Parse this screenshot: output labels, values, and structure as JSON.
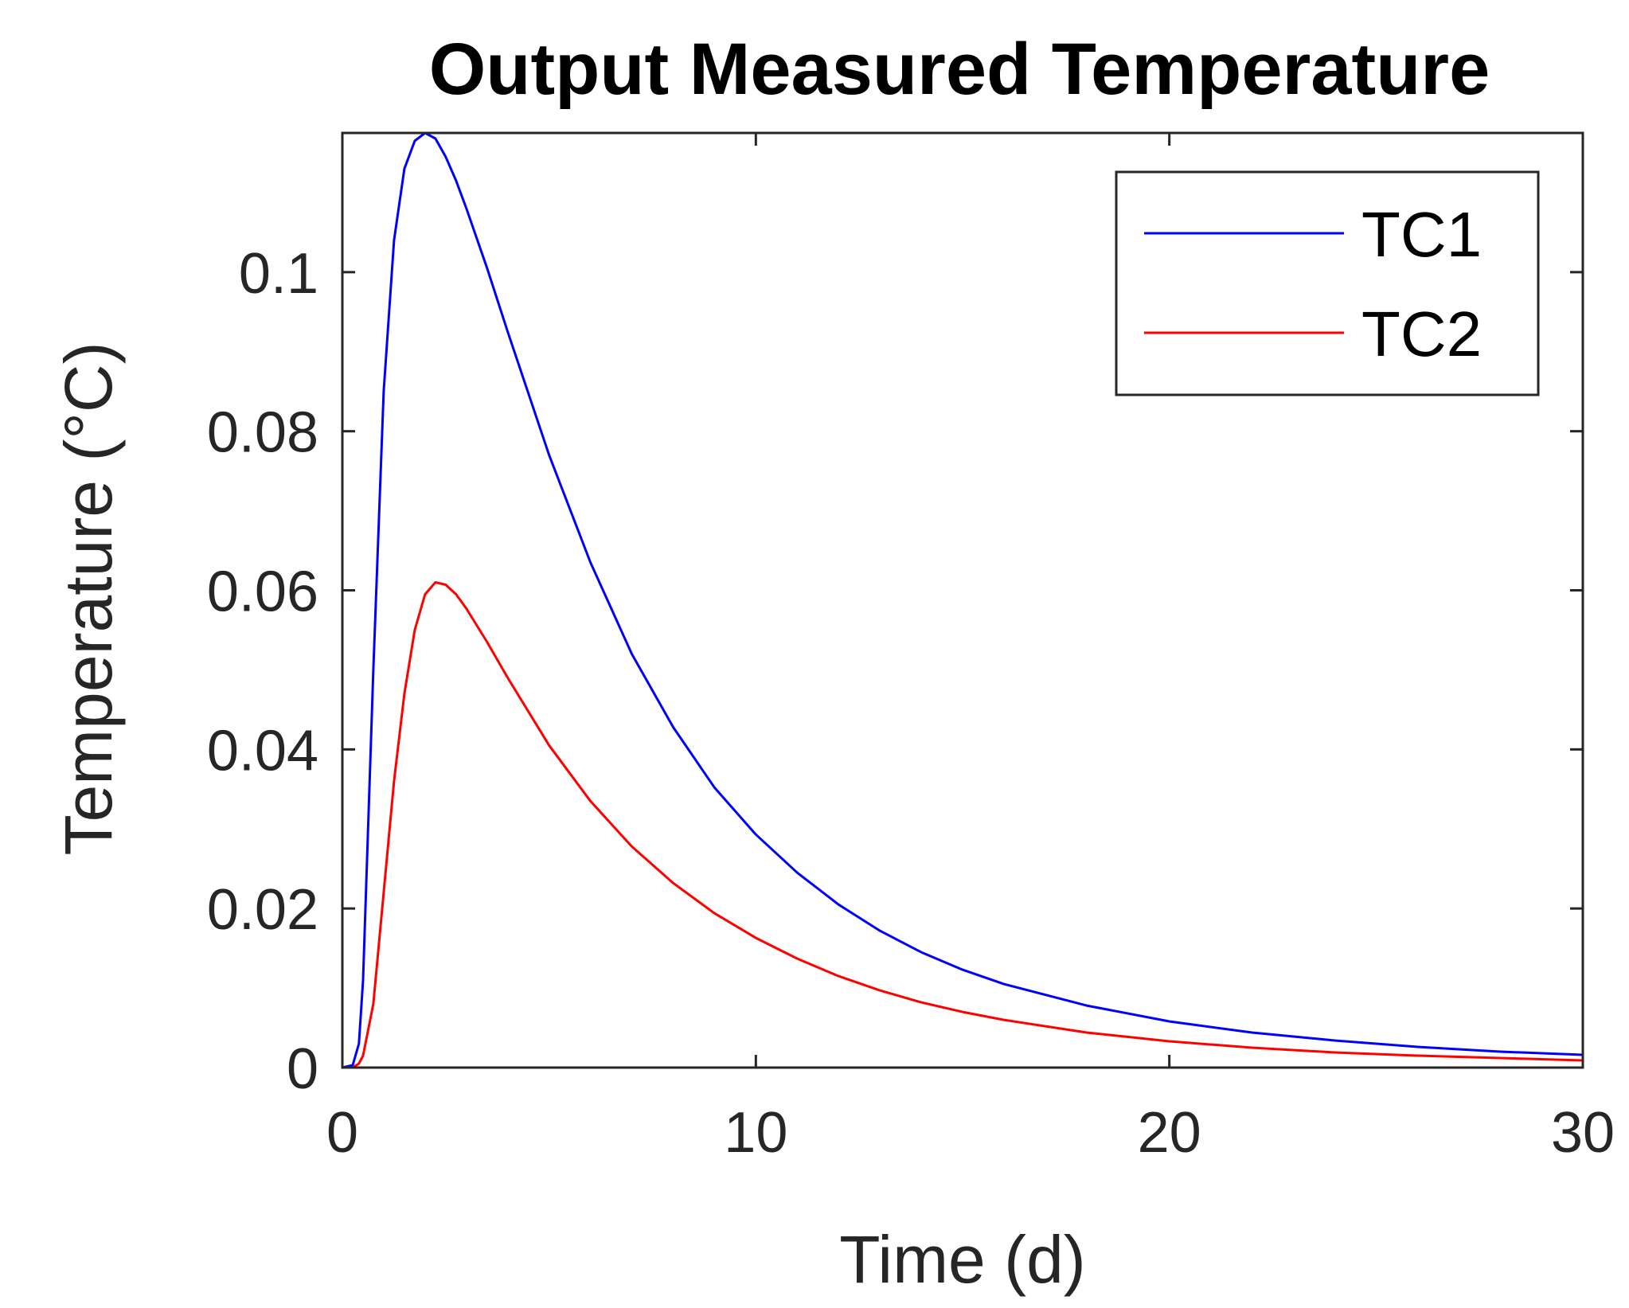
{
  "chart_data": {
    "type": "line",
    "title": "Output Measured Temperature",
    "xlabel": "Time (d)",
    "ylabel": "Temperature (°C)",
    "xlim": [
      0,
      30
    ],
    "ylim": [
      0,
      0.1175
    ],
    "x_ticks": [
      0,
      10,
      20,
      30
    ],
    "x_tick_labels": [
      "0",
      "10",
      "20",
      "30"
    ],
    "y_ticks": [
      0,
      0.02,
      0.04,
      0.06,
      0.08,
      0.1
    ],
    "y_tick_labels": [
      "0",
      "0.02",
      "0.04",
      "0.06",
      "0.08",
      "0.1"
    ],
    "grid": false,
    "legend_position": "top-right",
    "x": [
      0,
      0.25,
      0.4,
      0.5,
      0.75,
      1.0,
      1.25,
      1.5,
      1.75,
      2.0,
      2.25,
      2.5,
      2.75,
      3.0,
      3.5,
      4.0,
      5.0,
      6.0,
      7.0,
      8.0,
      9.0,
      10.0,
      11.0,
      12.0,
      13.0,
      14.0,
      15.0,
      16.0,
      18.0,
      20.0,
      22.0,
      24.0,
      26.0,
      28.0,
      30.0
    ],
    "series": [
      {
        "name": "TC1",
        "color": "#0000ff",
        "values": [
          0,
          0.0003,
          0.003,
          0.011,
          0.05,
          0.085,
          0.104,
          0.113,
          0.1165,
          0.1175,
          0.1168,
          0.1145,
          0.1115,
          0.108,
          0.1005,
          0.0925,
          0.077,
          0.0635,
          0.052,
          0.0428,
          0.0352,
          0.0293,
          0.0245,
          0.0205,
          0.0172,
          0.0145,
          0.0123,
          0.0105,
          0.0078,
          0.0058,
          0.0044,
          0.0034,
          0.0026,
          0.002,
          0.0016
        ]
      },
      {
        "name": "TC2",
        "color": "#ff0000",
        "values": [
          0,
          0.0,
          0.0005,
          0.0015,
          0.008,
          0.022,
          0.036,
          0.047,
          0.055,
          0.0595,
          0.061,
          0.0607,
          0.0595,
          0.0577,
          0.0535,
          0.049,
          0.0405,
          0.0335,
          0.0278,
          0.0232,
          0.0194,
          0.0163,
          0.0137,
          0.0115,
          0.0097,
          0.0082,
          0.007,
          0.006,
          0.0044,
          0.0033,
          0.0025,
          0.0019,
          0.0015,
          0.0012,
          0.0009
        ]
      }
    ]
  }
}
